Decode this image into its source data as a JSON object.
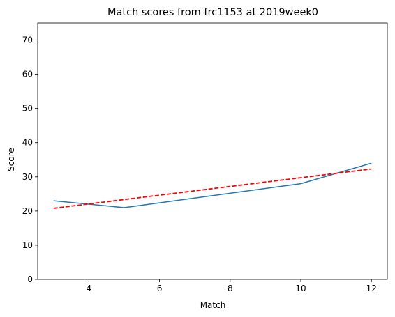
{
  "chart_data": {
    "type": "line",
    "title": "Match scores from frc1153 at 2019week0",
    "xlabel": "Match",
    "ylabel": "Score",
    "xlim": [
      2.55,
      12.45
    ],
    "ylim": [
      0,
      75
    ],
    "xticks": [
      4,
      6,
      8,
      10,
      12
    ],
    "yticks": [
      0,
      10,
      20,
      30,
      40,
      50,
      60,
      70
    ],
    "grid": false,
    "series": [
      {
        "style": "solid",
        "color": "#1f77b4",
        "x": [
          3,
          5,
          10,
          12
        ],
        "y": [
          23,
          21,
          28,
          34
        ]
      },
      {
        "style": "dashed",
        "color": "#ff0000",
        "x": [
          3,
          12
        ],
        "y": [
          20.8,
          32.3
        ]
      }
    ]
  }
}
